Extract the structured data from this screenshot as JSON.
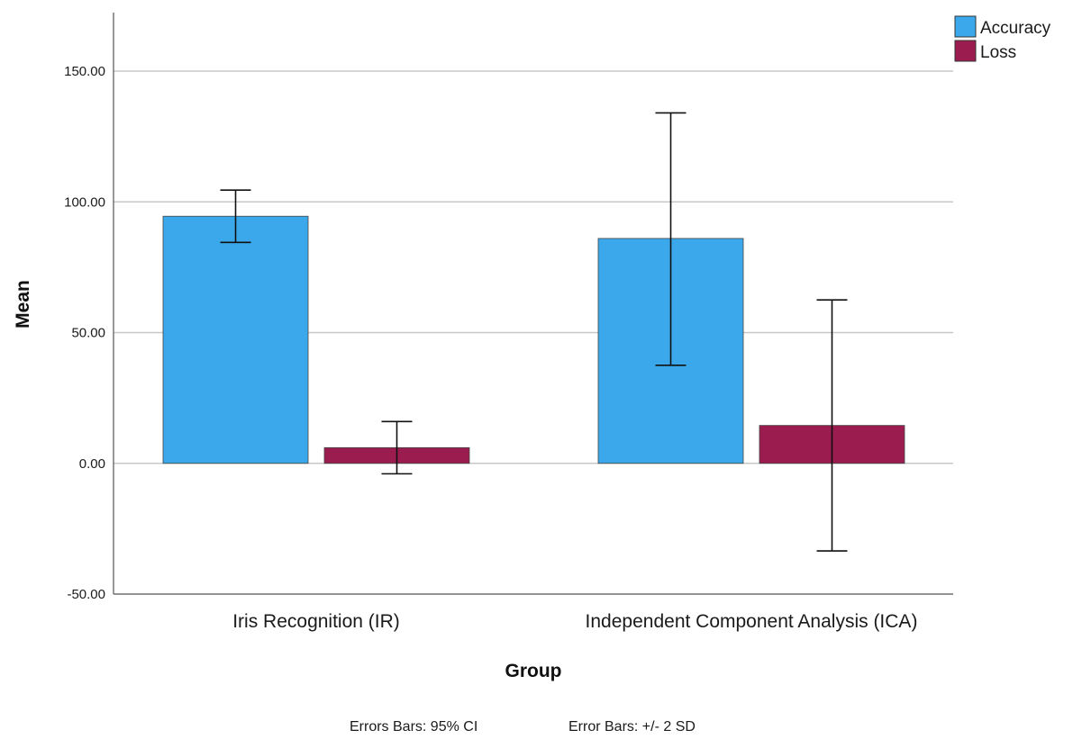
{
  "chart_data": {
    "type": "bar",
    "categories": [
      "Iris Recognition (IR)",
      "Independent Component Analysis (ICA)"
    ],
    "series": [
      {
        "name": "Accuracy",
        "color": "#3aa8ea",
        "values": [
          94.5,
          86.0
        ],
        "error_low": [
          84.5,
          37.5
        ],
        "error_high": [
          104.5,
          134.0
        ]
      },
      {
        "name": "Loss",
        "color": "#9b1c4e",
        "values": [
          6.0,
          14.5
        ],
        "error_low": [
          -4.0,
          -33.5
        ],
        "error_high": [
          16.0,
          62.5
        ]
      }
    ],
    "xlabel": "Group",
    "ylabel": "Mean",
    "ylim": [
      -50,
      150
    ],
    "yticks": [
      "150.00",
      "100.00",
      "50.00",
      "0.00",
      "-50.00"
    ],
    "ytick_values": [
      150,
      100,
      50,
      0,
      -50
    ],
    "grid": true,
    "legend_position": "top-right",
    "footnotes": [
      "Errors Bars: 95% CI",
      "Error Bars: +/- 2 SD"
    ]
  }
}
